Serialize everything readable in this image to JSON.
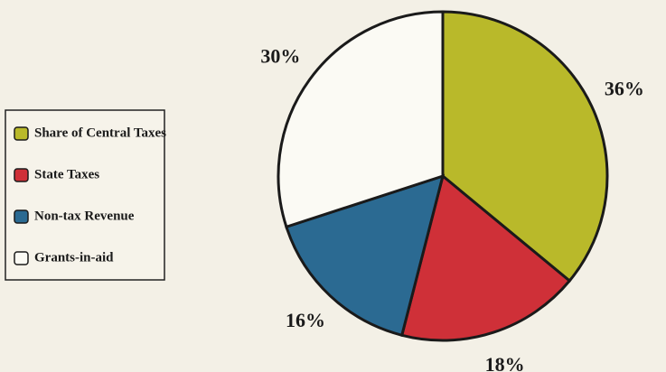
{
  "chart_data": {
    "type": "pie",
    "categories": [
      "Share of Central Taxes",
      "State Taxes",
      "Non-tax Revenue",
      "Grants-in-aid"
    ],
    "values": [
      36,
      18,
      16,
      30
    ],
    "value_labels": [
      "36%",
      "18%",
      "16%",
      "30%"
    ],
    "colors": [
      "#b9b92a",
      "#cf3038",
      "#2b6a92",
      "#fbfaf4"
    ],
    "legend": "left"
  }
}
